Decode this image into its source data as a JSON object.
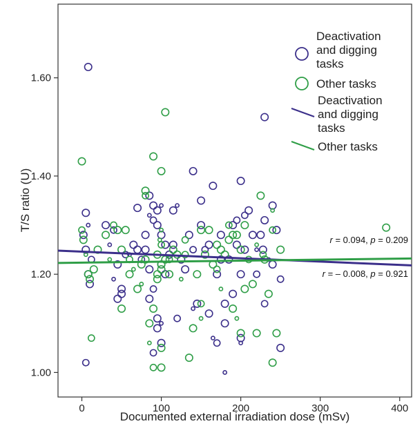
{
  "chart_data": {
    "type": "scatter",
    "title": "",
    "xlabel": "Documented external irradiation dose (mSv)",
    "ylabel": "T/S ratio (U)",
    "xlim": [
      -30,
      415
    ],
    "ylim": [
      0.95,
      1.75
    ],
    "x_ticks": [
      "0",
      "100",
      "200",
      "300",
      "400"
    ],
    "y_ticks": [
      "1.00",
      "1.20",
      "1.40",
      "1.60"
    ],
    "grid": false,
    "legend_position": "top-right",
    "colors": {
      "deactivation": "#3b2f8a",
      "other": "#2f9e47"
    },
    "legend": {
      "marker_items": [
        "Deactivation\nand digging\ntasks",
        "Other tasks"
      ],
      "line_items": [
        "Deactivation\nand digging\ntasks",
        "Other tasks"
      ]
    },
    "series": [
      {
        "name": "Deactivation and digging tasks",
        "color": "#3b2f8a",
        "points": [
          [
            8,
            1.622
          ],
          [
            5,
            1.02
          ],
          [
            5,
            1.325
          ],
          [
            8,
            1.3
          ],
          [
            10,
            1.18
          ],
          [
            8,
            1.2
          ],
          [
            12,
            1.23
          ],
          [
            5,
            1.25
          ],
          [
            2,
            1.28
          ],
          [
            30,
            1.3
          ],
          [
            35,
            1.26
          ],
          [
            40,
            1.29
          ],
          [
            45,
            1.22
          ],
          [
            45,
            1.15
          ],
          [
            50,
            1.17
          ],
          [
            50,
            1.16
          ],
          [
            55,
            1.24
          ],
          [
            40,
            1.19
          ],
          [
            65,
            1.26
          ],
          [
            70,
            1.25
          ],
          [
            70,
            1.335
          ],
          [
            75,
            1.23
          ],
          [
            80,
            1.28
          ],
          [
            85,
            1.36
          ],
          [
            85,
            1.32
          ],
          [
            90,
            1.34
          ],
          [
            90,
            1.31
          ],
          [
            95,
            1.33
          ],
          [
            95,
            1.3
          ],
          [
            95,
            1.09
          ],
          [
            100,
            1.06
          ],
          [
            100,
            1.34
          ],
          [
            100,
            1.28
          ],
          [
            100,
            1.22
          ],
          [
            105,
            1.2
          ],
          [
            85,
            1.15
          ],
          [
            90,
            1.17
          ],
          [
            95,
            1.11
          ],
          [
            100,
            1.1
          ],
          [
            105,
            1.26
          ],
          [
            110,
            1.24
          ],
          [
            90,
            1.04
          ],
          [
            85,
            1.21
          ],
          [
            80,
            1.25
          ],
          [
            115,
            1.33
          ],
          [
            120,
            1.34
          ],
          [
            120,
            1.11
          ],
          [
            125,
            1.23
          ],
          [
            130,
            1.21
          ],
          [
            135,
            1.28
          ],
          [
            140,
            1.41
          ],
          [
            140,
            1.25
          ],
          [
            140,
            1.13
          ],
          [
            145,
            1.14
          ],
          [
            150,
            1.35
          ],
          [
            150,
            1.3
          ],
          [
            155,
            1.25
          ],
          [
            160,
            1.26
          ],
          [
            160,
            1.12
          ],
          [
            165,
            1.07
          ],
          [
            165,
            1.38
          ],
          [
            170,
            1.06
          ],
          [
            175,
            1.28
          ],
          [
            175,
            1.23
          ],
          [
            180,
            1.14
          ],
          [
            180,
            1.1
          ],
          [
            180,
            1.0
          ],
          [
            185,
            1.23
          ],
          [
            190,
            1.3
          ],
          [
            190,
            1.16
          ],
          [
            195,
            1.26
          ],
          [
            195,
            1.31
          ],
          [
            200,
            1.07
          ],
          [
            200,
            1.06
          ],
          [
            200,
            1.2
          ],
          [
            200,
            1.39
          ],
          [
            205,
            1.32
          ],
          [
            205,
            1.25
          ],
          [
            210,
            1.33
          ],
          [
            215,
            1.28
          ],
          [
            220,
            1.25
          ],
          [
            220,
            1.2
          ],
          [
            225,
            1.28
          ],
          [
            228,
            1.25
          ],
          [
            230,
            1.52
          ],
          [
            230,
            1.31
          ],
          [
            230,
            1.14
          ],
          [
            235,
            1.23
          ],
          [
            240,
            1.34
          ],
          [
            245,
            1.29
          ],
          [
            250,
            1.05
          ],
          [
            250,
            1.19
          ],
          [
            240,
            1.22
          ],
          [
            115,
            1.26
          ],
          [
            60,
            1.24
          ],
          [
            170,
            1.2
          ]
        ]
      },
      {
        "name": "Other tasks",
        "color": "#2f9e47",
        "points": [
          [
            0,
            1.43
          ],
          [
            0,
            1.29
          ],
          [
            2,
            1.27
          ],
          [
            5,
            1.24
          ],
          [
            8,
            1.2
          ],
          [
            10,
            1.19
          ],
          [
            12,
            1.07
          ],
          [
            15,
            1.21
          ],
          [
            20,
            1.25
          ],
          [
            30,
            1.28
          ],
          [
            35,
            1.23
          ],
          [
            40,
            1.3
          ],
          [
            45,
            1.29
          ],
          [
            50,
            1.13
          ],
          [
            50,
            1.25
          ],
          [
            55,
            1.29
          ],
          [
            60,
            1.23
          ],
          [
            65,
            1.21
          ],
          [
            70,
            1.17
          ],
          [
            75,
            1.22
          ],
          [
            80,
            1.37
          ],
          [
            80,
            1.36
          ],
          [
            80,
            1.23
          ],
          [
            85,
            1.1
          ],
          [
            85,
            1.06
          ],
          [
            90,
            1.13
          ],
          [
            90,
            1.01
          ],
          [
            90,
            1.44
          ],
          [
            95,
            1.2
          ],
          [
            95,
            1.19
          ],
          [
            95,
            1.24
          ],
          [
            98,
            1.27
          ],
          [
            100,
            1.01
          ],
          [
            100,
            1.05
          ],
          [
            100,
            1.21
          ],
          [
            100,
            1.41
          ],
          [
            100,
            1.26
          ],
          [
            100,
            1.22
          ],
          [
            100,
            1.29
          ],
          [
            105,
            1.53
          ],
          [
            105,
            1.23
          ],
          [
            110,
            1.23
          ],
          [
            110,
            1.2
          ],
          [
            115,
            1.25
          ],
          [
            120,
            1.24
          ],
          [
            125,
            1.19
          ],
          [
            130,
            1.27
          ],
          [
            135,
            1.03
          ],
          [
            140,
            1.09
          ],
          [
            145,
            1.2
          ],
          [
            150,
            1.29
          ],
          [
            150,
            1.14
          ],
          [
            150,
            1.11
          ],
          [
            155,
            1.24
          ],
          [
            160,
            1.29
          ],
          [
            165,
            1.22
          ],
          [
            170,
            1.21
          ],
          [
            170,
            1.26
          ],
          [
            175,
            1.25
          ],
          [
            175,
            1.17
          ],
          [
            180,
            1.24
          ],
          [
            185,
            1.3
          ],
          [
            185,
            1.27
          ],
          [
            190,
            1.28
          ],
          [
            190,
            1.13
          ],
          [
            195,
            1.28
          ],
          [
            195,
            1.11
          ],
          [
            200,
            1.08
          ],
          [
            200,
            1.25
          ],
          [
            205,
            1.3
          ],
          [
            205,
            1.17
          ],
          [
            210,
            1.23
          ],
          [
            215,
            1.18
          ],
          [
            220,
            1.26
          ],
          [
            220,
            1.08
          ],
          [
            225,
            1.36
          ],
          [
            228,
            1.24
          ],
          [
            230,
            1.23
          ],
          [
            235,
            1.16
          ],
          [
            240,
            1.02
          ],
          [
            240,
            1.33
          ],
          [
            240,
            1.29
          ],
          [
            245,
            1.08
          ],
          [
            250,
            1.25
          ],
          [
            383,
            1.295
          ],
          [
            60,
            1.2
          ],
          [
            130,
            1.24
          ],
          [
            75,
            1.18
          ]
        ]
      }
    ],
    "fit_lines": [
      {
        "series": "Deactivation and digging tasks",
        "color": "#3b2f8a",
        "x": [
          -30,
          415
        ],
        "y": [
          1.248,
          1.218
        ]
      },
      {
        "series": "Other tasks",
        "color": "#2f9e47",
        "x": [
          -30,
          415
        ],
        "y": [
          1.223,
          1.232
        ]
      }
    ],
    "annotations": [
      {
        "prefix": "r",
        "rest": " = 0.094, ",
        "p_prefix": "p",
        "p_rest": " = 0.209"
      },
      {
        "prefix": "r",
        "rest": " = – 0.008, ",
        "p_prefix": "p",
        "p_rest": " = 0.921"
      }
    ]
  }
}
